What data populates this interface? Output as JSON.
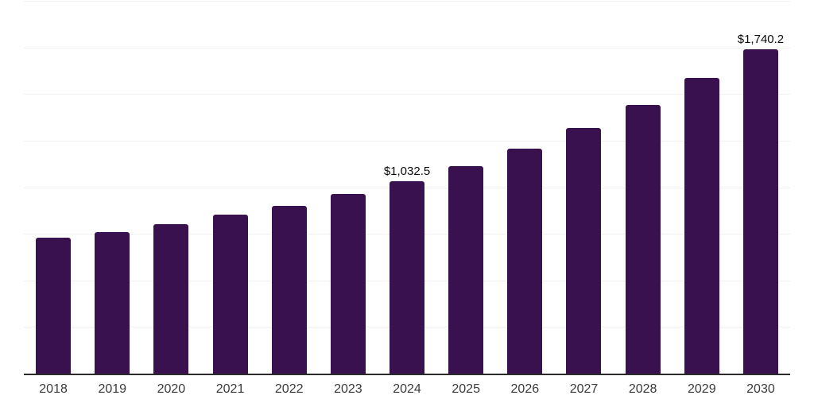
{
  "chart": {
    "background": "#ffffff",
    "bar_color": "#38114E",
    "grid_color": "#f0f0f0",
    "axis_line_color": "#2b2b2b",
    "axis_label_color": "#3a3a3a",
    "data_label_color": "#0a0a0a"
  },
  "chart_data": {
    "type": "bar",
    "title": "",
    "xlabel": "",
    "ylabel": "",
    "categories": [
      "2018",
      "2019",
      "2020",
      "2021",
      "2022",
      "2023",
      "2024",
      "2025",
      "2026",
      "2027",
      "2028",
      "2029",
      "2030"
    ],
    "values": [
      730,
      760,
      801,
      853,
      900,
      964,
      1032.5,
      1113,
      1208,
      1318,
      1441,
      1585,
      1740.2
    ],
    "data_labels": [
      "",
      "",
      "",
      "",
      "",
      "",
      "$1,032.5",
      "",
      "",
      "",
      "",
      "",
      "$1,740.2"
    ],
    "ylim": [
      0,
      2000
    ],
    "grid_step": 250,
    "grid": true,
    "legend": false,
    "y_axis_tick_labels_visible": false
  }
}
